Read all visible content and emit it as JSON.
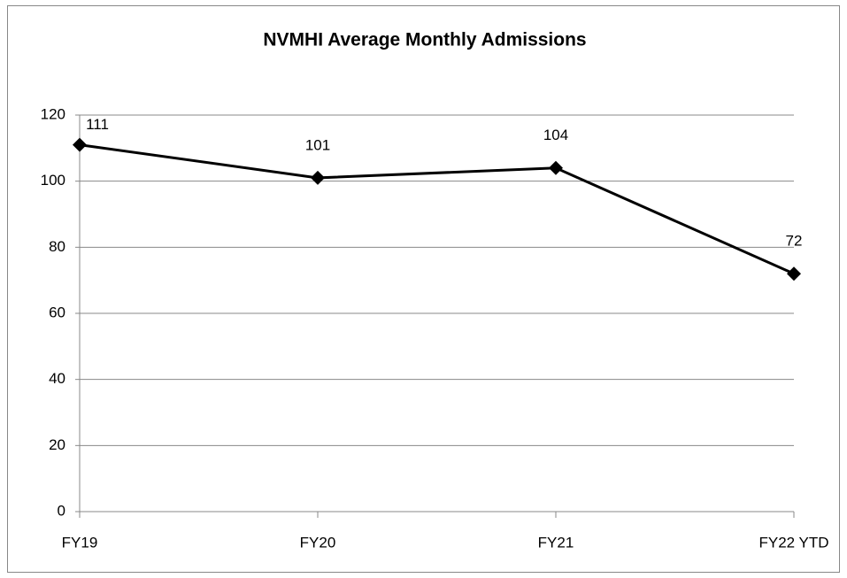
{
  "chart_data": {
    "type": "line",
    "title": "NVMHI Average Monthly Admissions",
    "categories": [
      "FY19",
      "FY20",
      "FY21",
      "FY22 YTD"
    ],
    "values": [
      111,
      101,
      104,
      72
    ],
    "color": "#000000",
    "ylim": [
      0,
      120
    ],
    "yticks": [
      0,
      20,
      40,
      60,
      80,
      100,
      120
    ],
    "grid": true
  }
}
